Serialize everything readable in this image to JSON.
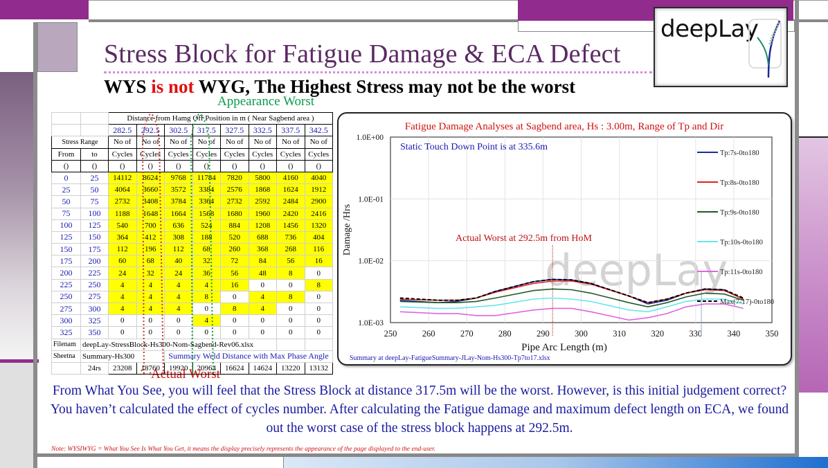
{
  "slide": {
    "title": "Stress Block for Fatigue Damage & ECA Defect",
    "subtitle_part1": "WYS ",
    "subtitle_part2": "is not",
    "subtitle_part3": " WYG, The Highest Stress may not be the worst",
    "logo_text": "deepLay",
    "annotation_appearance_worst": "Appearance Worst",
    "annotation_actual_worst": "Actual Worst",
    "paragraph": "From What You See, you will feel that the Stress Block at distance 317.5m will be the worst. However, is this initial judgement correct? You haven’t calculated the effect of cycles number. After calculating the Fatigue damage and maximum defect length on ECA, we found out the worst case of the stress block happens at 292.5m.",
    "note": "Note: WYSIWYG  = What You See Is What You Get,  it means the display precisely represents the appearance of the page displayed to the end-user.",
    "colors": {
      "purple_accent": "#922b8e",
      "title_purple": "#5b2a63",
      "emphasis_red": "#e01010",
      "paragraph_blue": "#1a1aa0",
      "highlight_yellow": "#ffff00",
      "appearance_green": "#0a9a4a"
    }
  },
  "table": {
    "distance_header": "Distance from Hamg Off Position in m ( Near Sagbend area )",
    "distances": [
      "282.5",
      "292.5",
      "302.5",
      "317.5",
      "327.5",
      "332.5",
      "337.5",
      "342.5"
    ],
    "stress_range_label": "Stress Range",
    "from_label": "From",
    "to_label": "to",
    "unit_label": "()",
    "col_label_line1": "No of",
    "col_label_line2": "Cycles",
    "rows": [
      {
        "from": "0",
        "to": "25",
        "values": [
          "14112",
          "8624",
          "9768",
          "11784",
          "7820",
          "5800",
          "4160",
          "4040"
        ],
        "yellow": [
          1,
          1,
          1,
          1,
          1,
          1,
          1,
          1
        ]
      },
      {
        "from": "25",
        "to": "50",
        "values": [
          "4064",
          "3660",
          "3572",
          "3384",
          "2576",
          "1868",
          "1624",
          "1912"
        ],
        "yellow": [
          1,
          1,
          1,
          1,
          1,
          1,
          1,
          1
        ]
      },
      {
        "from": "50",
        "to": "75",
        "values": [
          "2732",
          "3408",
          "3784",
          "3364",
          "2732",
          "2592",
          "2484",
          "2900"
        ],
        "yellow": [
          1,
          1,
          1,
          1,
          1,
          1,
          1,
          1
        ]
      },
      {
        "from": "75",
        "to": "100",
        "values": [
          "1188",
          "1648",
          "1664",
          "1568",
          "1680",
          "1960",
          "2420",
          "2416"
        ],
        "yellow": [
          1,
          1,
          1,
          1,
          1,
          1,
          1,
          1
        ]
      },
      {
        "from": "100",
        "to": "125",
        "values": [
          "540",
          "700",
          "636",
          "524",
          "884",
          "1208",
          "1456",
          "1320"
        ],
        "yellow": [
          1,
          1,
          1,
          1,
          1,
          1,
          1,
          1
        ]
      },
      {
        "from": "125",
        "to": "150",
        "values": [
          "364",
          "412",
          "308",
          "188",
          "520",
          "688",
          "736",
          "404"
        ],
        "yellow": [
          1,
          1,
          1,
          1,
          1,
          1,
          1,
          1
        ]
      },
      {
        "from": "150",
        "to": "175",
        "values": [
          "112",
          "196",
          "112",
          "68",
          "260",
          "368",
          "268",
          "116"
        ],
        "yellow": [
          1,
          1,
          1,
          1,
          1,
          1,
          1,
          1
        ]
      },
      {
        "from": "175",
        "to": "200",
        "values": [
          "60",
          "68",
          "40",
          "32",
          "72",
          "84",
          "56",
          "16"
        ],
        "yellow": [
          1,
          1,
          1,
          1,
          1,
          1,
          1,
          1
        ]
      },
      {
        "from": "200",
        "to": "225",
        "values": [
          "24",
          "32",
          "24",
          "36",
          "56",
          "48",
          "8",
          "0"
        ],
        "yellow": [
          1,
          1,
          1,
          1,
          1,
          1,
          1,
          0
        ]
      },
      {
        "from": "225",
        "to": "250",
        "values": [
          "4",
          "4",
          "4",
          "4",
          "16",
          "0",
          "0",
          "8"
        ],
        "yellow": [
          1,
          1,
          1,
          1,
          1,
          0,
          0,
          1
        ]
      },
      {
        "from": "250",
        "to": "275",
        "values": [
          "4",
          "4",
          "4",
          "8",
          "0",
          "4",
          "8",
          "0"
        ],
        "yellow": [
          1,
          1,
          1,
          1,
          0,
          1,
          1,
          0
        ]
      },
      {
        "from": "275",
        "to": "300",
        "values": [
          "4",
          "4",
          "4",
          "0",
          "8",
          "4",
          "0",
          "0"
        ],
        "yellow": [
          1,
          1,
          1,
          0,
          1,
          1,
          0,
          0
        ]
      },
      {
        "from": "300",
        "to": "325",
        "values": [
          "0",
          "0",
          "0",
          "4",
          "0",
          "0",
          "0",
          "0"
        ],
        "yellow": [
          0,
          0,
          0,
          1,
          0,
          0,
          0,
          0
        ]
      },
      {
        "from": "325",
        "to": "350",
        "values": [
          "0",
          "0",
          "0",
          "0",
          "0",
          "0",
          "0",
          "0"
        ],
        "yellow": [
          0,
          0,
          0,
          0,
          0,
          0,
          0,
          0
        ]
      }
    ],
    "filename_label": "Filenam",
    "filename_value": "deepLay-StressBlock-Hs300-Nom-Sagbend-Rev06.xlsx",
    "sheetname_label": "Sheetna",
    "sheetname_value": "Summary-Hs300",
    "summary_note": "Summary Weld Distance with  Max Phase Angle",
    "total_label": "24rs",
    "totals": [
      "23208",
      "18760",
      "19920",
      "20964",
      "16624",
      "14624",
      "13220",
      "13132"
    ]
  },
  "chart_data": {
    "type": "line",
    "title": "Fatigue Damage Analyses at Sagbend area, Hs : 3.00m, Range of Tp and Dir",
    "xlabel": "Pipe Arc Length (m)",
    "ylabel": "Damage /Hrs",
    "xlim": [
      250,
      350
    ],
    "ylim": [
      0.001,
      1.0
    ],
    "yscale": "log",
    "x_ticks": [
      "250",
      "260",
      "270",
      "280",
      "290",
      "300",
      "310",
      "320",
      "330",
      "340",
      "350"
    ],
    "y_ticks": [
      "1.0E+00",
      "1.0E-01",
      "1.0E-02",
      "1.0E-03"
    ],
    "grid": true,
    "legend_position": "right-inside",
    "annotations": [
      "Static Touch Down Point is at 335.6m",
      "Actual Worst at 292.5m from HoM"
    ],
    "footer": "Summary  at  deepLay-FatigueSummary-JLay-Nom-Hs300-Tp7to17.xlsx",
    "watermark": "deepLay",
    "x": [
      252.5,
      262.5,
      267.5,
      272.5,
      277.5,
      287.5,
      292.5,
      297.5,
      302.5,
      312.5,
      317.5,
      322.5,
      327.5,
      332.5,
      337.5,
      342.5
    ],
    "series": [
      {
        "name": "Tp:7s-0to180",
        "color": "#1a2a9a",
        "dash": false,
        "values": [
          0.0023,
          0.0021,
          0.0022,
          0.0025,
          0.0032,
          0.0046,
          0.005,
          0.0049,
          0.0043,
          0.0027,
          0.002,
          0.0023,
          0.003,
          0.0035,
          0.0034,
          0.0024
        ]
      },
      {
        "name": "Tp:8s-0to180",
        "color": "#e02020",
        "dash": false,
        "values": [
          0.0024,
          0.0023,
          0.0023,
          0.0025,
          0.0031,
          0.0043,
          0.0047,
          0.0047,
          0.0042,
          0.0027,
          0.0021,
          0.0024,
          0.003,
          0.0034,
          0.0033,
          0.0024
        ]
      },
      {
        "name": "Tp:9s-0to180",
        "color": "#1e5a26",
        "dash": false,
        "values": [
          0.0022,
          0.0021,
          0.0021,
          0.0022,
          0.0025,
          0.0033,
          0.0035,
          0.0034,
          0.003,
          0.0021,
          0.0018,
          0.0021,
          0.0026,
          0.003,
          0.0029,
          0.0023
        ]
      },
      {
        "name": "Tp:10s-0to180",
        "color": "#66e6ea",
        "dash": false,
        "values": [
          0.0018,
          0.0017,
          0.0017,
          0.0018,
          0.0019,
          0.0024,
          0.0025,
          0.0024,
          0.0022,
          0.0016,
          0.0015,
          0.0018,
          0.0022,
          0.0024,
          0.0024,
          0.002
        ]
      },
      {
        "name": "Tp:11s-0to180",
        "color": "#dd66dd",
        "dash": false,
        "values": [
          0.0015,
          0.0014,
          0.0014,
          0.0013,
          0.0013,
          0.0016,
          0.0017,
          0.0017,
          0.0015,
          0.0011,
          0.0012,
          0.0014,
          0.0018,
          0.002,
          0.002,
          0.0017
        ]
      },
      {
        "name": "Max(7-17)-0to180",
        "color": "#000000",
        "dash": true,
        "values": [
          0.0025,
          0.0023,
          0.0023,
          0.0025,
          0.0032,
          0.0046,
          0.005,
          0.0049,
          0.0043,
          0.0027,
          0.0021,
          0.0024,
          0.003,
          0.0035,
          0.0034,
          0.0025
        ]
      }
    ]
  }
}
